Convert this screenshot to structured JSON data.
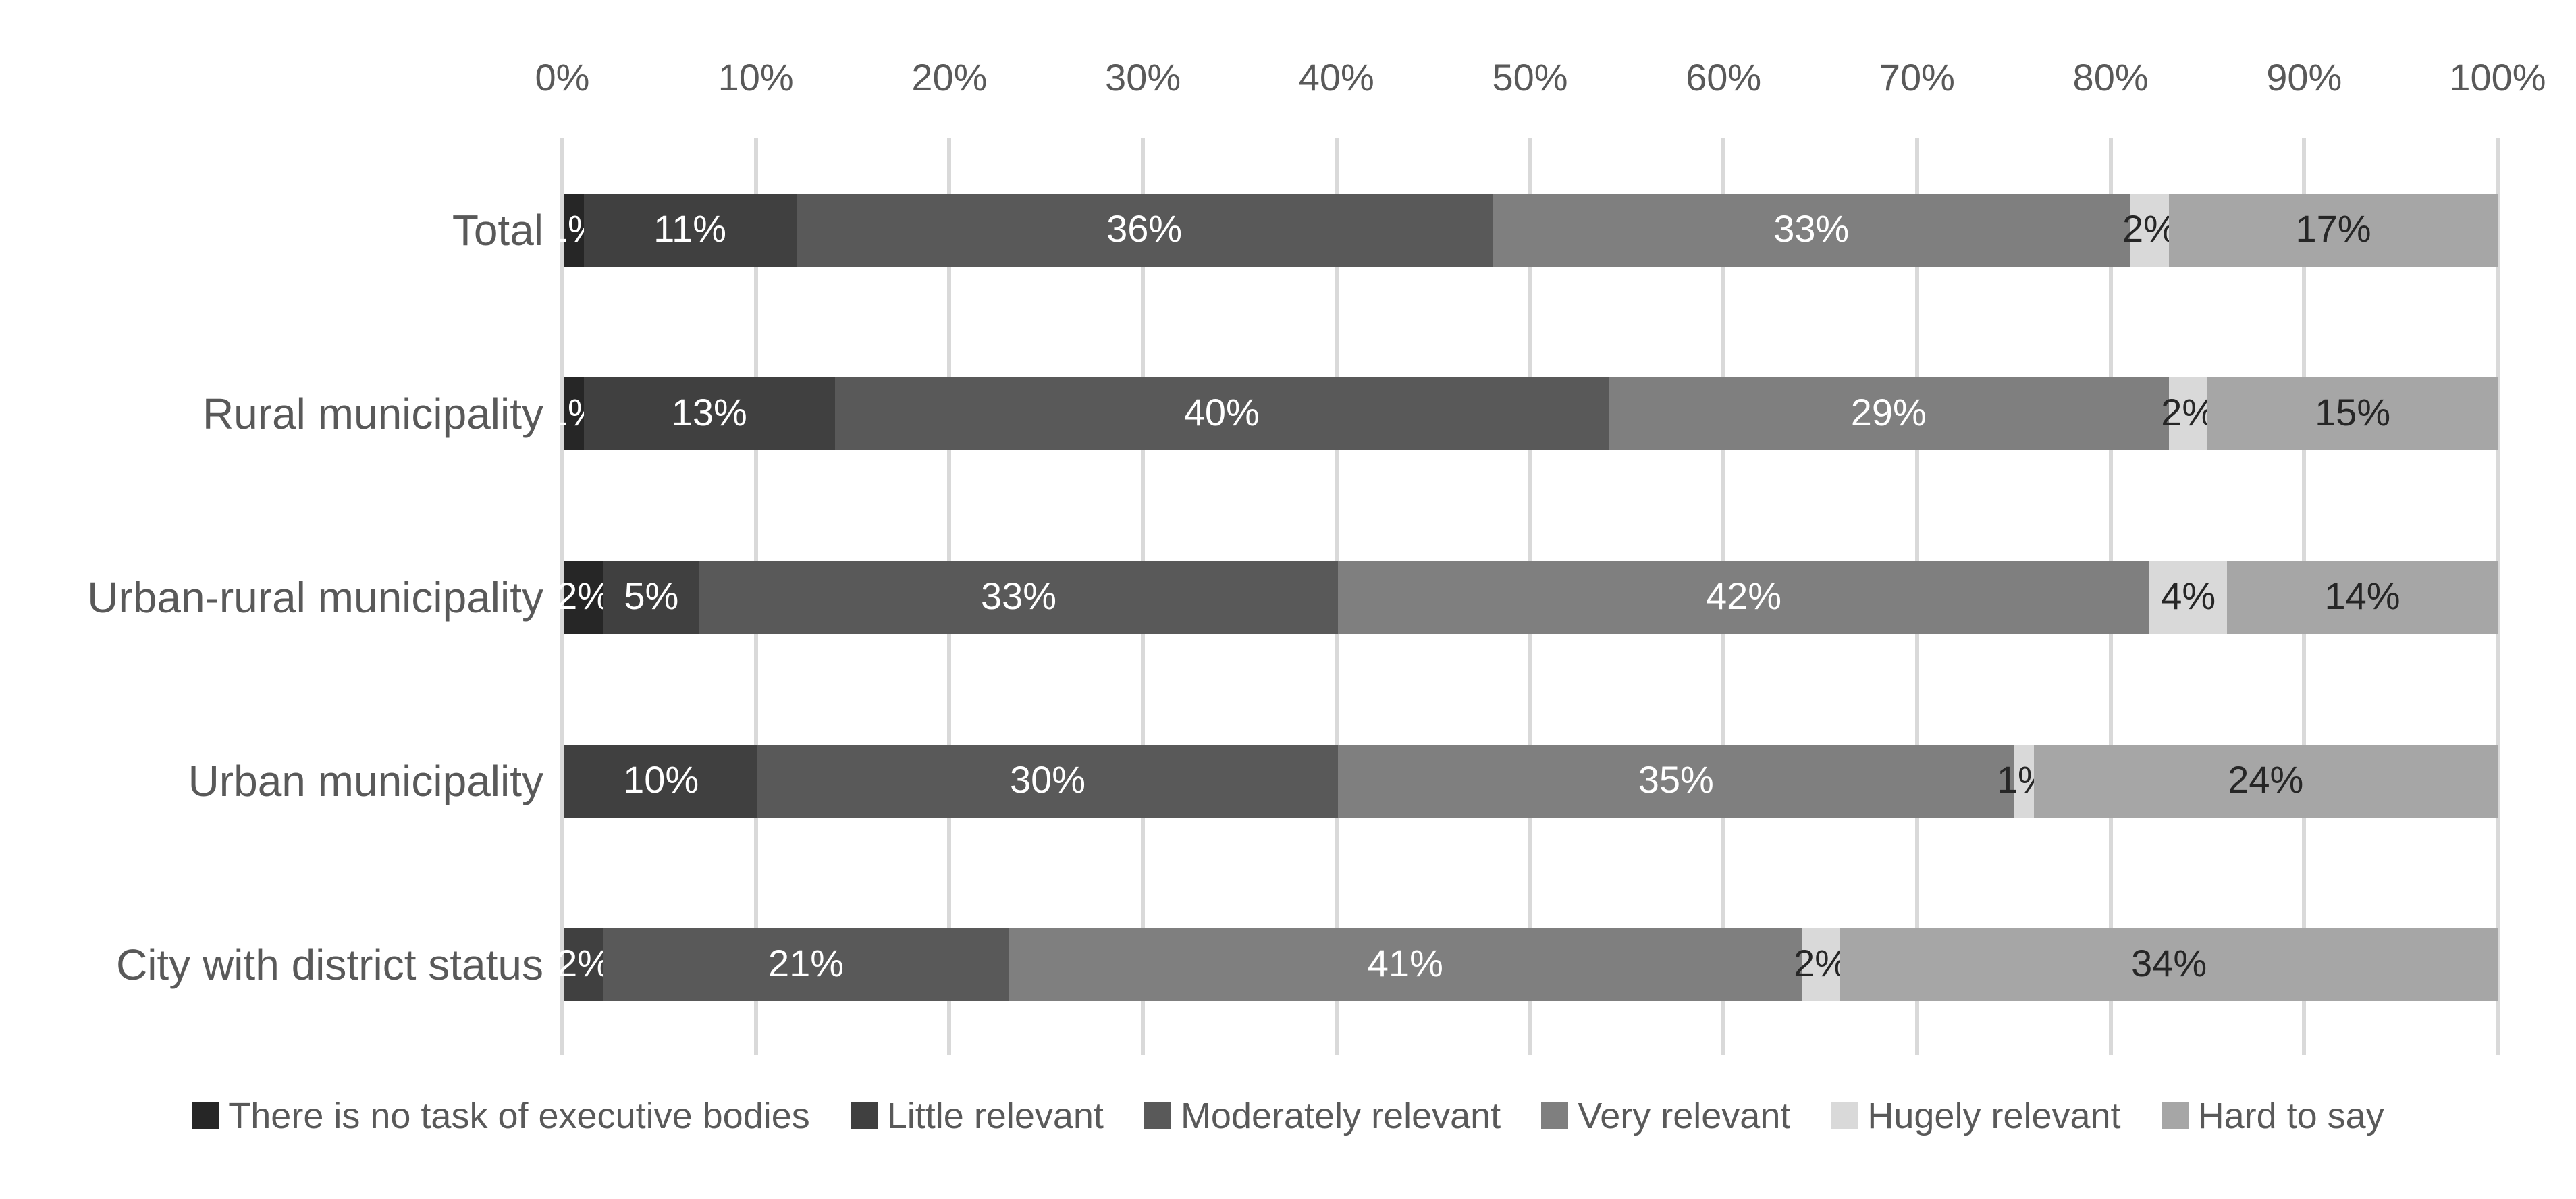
{
  "chart_data": {
    "type": "bar",
    "subtype": "stacked-horizontal",
    "title": "",
    "xlabel": "",
    "ylabel": "",
    "categories": [
      "Total",
      "Rural municipality",
      "Urban-rural municipality",
      "Urban municipality",
      "City with district status"
    ],
    "series": [
      {
        "name": "There is no task of executive bodies",
        "color": "#262626",
        "label_color": "#ffffff",
        "values": [
          1,
          1,
          2,
          0,
          0
        ]
      },
      {
        "name": "Little relevant",
        "color": "#404040",
        "label_color": "#ffffff",
        "values": [
          11,
          13,
          5,
          10,
          2
        ]
      },
      {
        "name": "Moderately relevant",
        "color": "#595959",
        "label_color": "#ffffff",
        "values": [
          36,
          40,
          33,
          30,
          21
        ]
      },
      {
        "name": "Very relevant",
        "color": "#7f7f7f",
        "label_color": "#ffffff",
        "values": [
          33,
          29,
          42,
          35,
          41
        ]
      },
      {
        "name": "Hugely relevant",
        "color": "#d9d9d9",
        "label_color": "#262626",
        "values": [
          2,
          2,
          4,
          1,
          2
        ]
      },
      {
        "name": "Hard to say",
        "color": "#a6a6a6",
        "label_color": "#262626",
        "values": [
          17,
          15,
          14,
          24,
          34
        ]
      }
    ],
    "x_axis": {
      "position": "top",
      "min": 0,
      "max": 100,
      "tick_labels": [
        "0%",
        "10%",
        "20%",
        "30%",
        "40%",
        "50%",
        "60%",
        "70%",
        "80%",
        "90%",
        "100%"
      ],
      "gridlines": true
    },
    "data_label_suffix": "%",
    "legend_position": "bottom"
  },
  "style": {
    "background": "#ffffff",
    "gridline_color": "#d9d9d9",
    "axis_text_color": "#595959"
  }
}
